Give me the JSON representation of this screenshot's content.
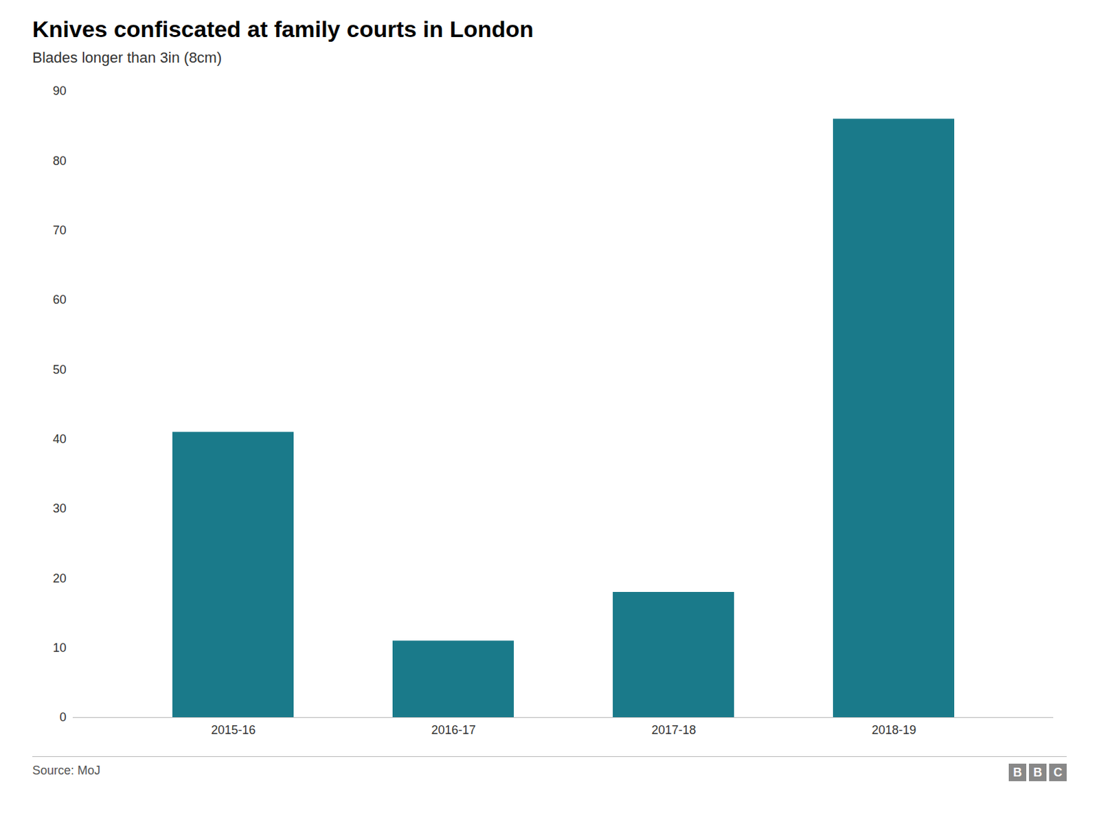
{
  "chart_data": {
    "type": "bar",
    "title": "Knives confiscated at family courts in London",
    "subtitle": "Blades longer than 3in (8cm)",
    "categories": [
      "2015-16",
      "2016-17",
      "2017-18",
      "2018-19"
    ],
    "values": [
      41,
      11,
      18,
      86
    ],
    "color": "#1a7a8a",
    "ylim": [
      0,
      90
    ],
    "yticks": [
      0,
      10,
      20,
      30,
      40,
      50,
      60,
      70,
      80,
      90
    ],
    "grid": false,
    "annotations": [
      "Source: MoJ",
      "BBC"
    ]
  }
}
